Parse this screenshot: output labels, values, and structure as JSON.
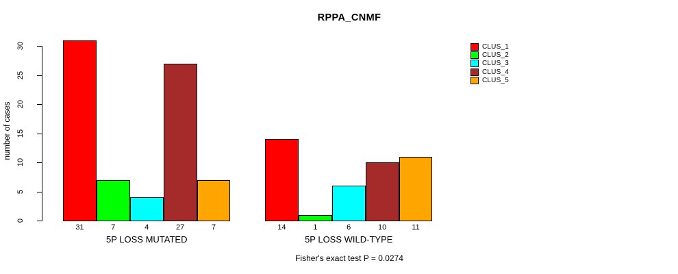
{
  "chart_data": {
    "type": "bar",
    "title": "RPPA_CNMF",
    "ylabel": "number of cases",
    "xlabel": "",
    "categories": [
      "5P LOSS MUTATED",
      "5P LOSS WILD-TYPE"
    ],
    "series": [
      {
        "name": "CLUS_1",
        "color": "#FF0000",
        "values": [
          31,
          14
        ]
      },
      {
        "name": "CLUS_2",
        "color": "#00FF00",
        "values": [
          7,
          1
        ]
      },
      {
        "name": "CLUS_3",
        "color": "#00FFFF",
        "values": [
          4,
          6
        ]
      },
      {
        "name": "CLUS_4",
        "color": "#A52A2A",
        "values": [
          27,
          10
        ]
      },
      {
        "name": "CLUS_5",
        "color": "#FFA500",
        "values": [
          7,
          11
        ]
      }
    ],
    "ylim": [
      0,
      31
    ],
    "yticks": [
      0,
      5,
      10,
      15,
      20,
      25,
      30
    ],
    "grid": false,
    "bar_value_labels": true,
    "legend_position": "top-right",
    "annotation": "Fisher's exact test P = 0.0274"
  }
}
